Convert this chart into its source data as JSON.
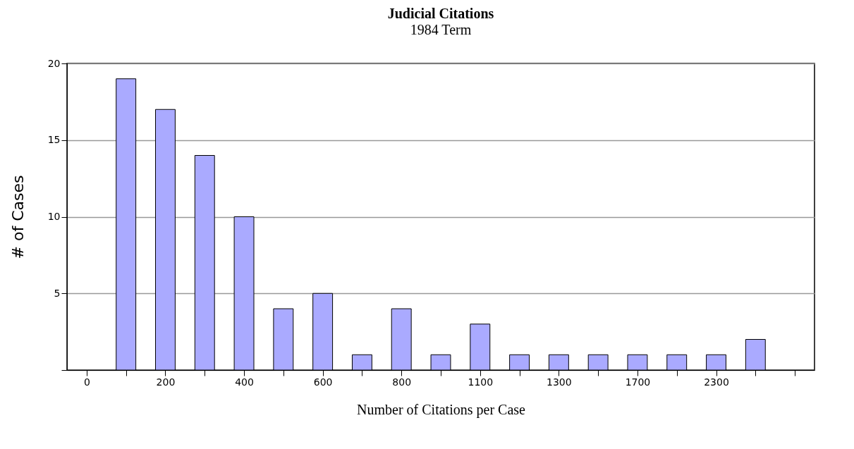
{
  "chart_data": {
    "type": "bar",
    "title": "Judicial Citations",
    "subtitle": "1984 Term",
    "xlabel": "Number of Citations per Case",
    "ylabel": "# of Cases",
    "categories": [
      "0",
      null,
      "200",
      null,
      "400",
      null,
      "600",
      null,
      "800",
      null,
      "1100",
      null,
      "1300",
      null,
      "1700",
      null,
      "2300",
      null,
      null
    ],
    "values": [
      null,
      19,
      17,
      14,
      10,
      4,
      5,
      1,
      4,
      1,
      3,
      1,
      1,
      1,
      1,
      1,
      1,
      2,
      null
    ],
    "color": "#aaaaff",
    "ylim": [
      0,
      20
    ],
    "yticks": [
      {
        "value": 0,
        "label": null
      },
      5,
      10,
      15,
      20
    ],
    "grid": "y"
  }
}
